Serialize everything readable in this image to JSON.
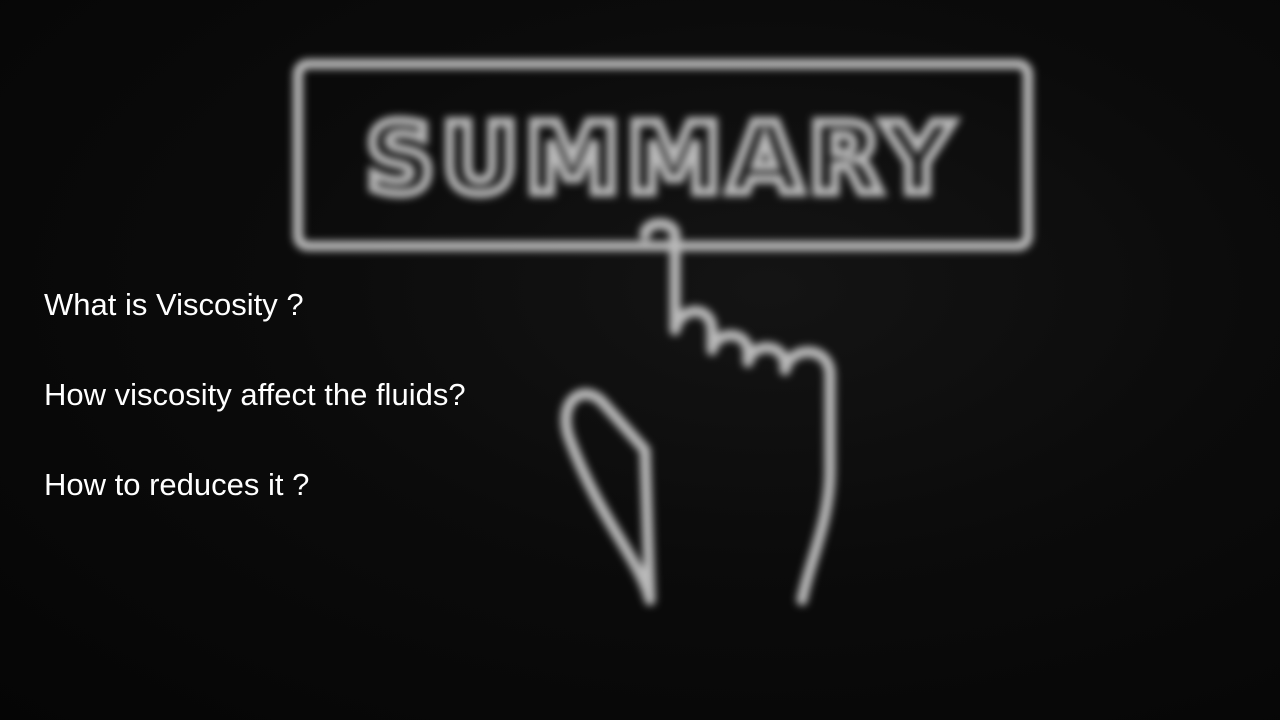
{
  "slide": {
    "background_art": {
      "sign_text": "SUMMARY",
      "hand_icon": "pointing-hand-icon",
      "stroke_color": "#b9b9b9",
      "background_color": "#0b0b0b"
    },
    "bullets": [
      "What is Viscosity ?",
      "How viscosity affect the fluids?",
      "How to reduces it ?"
    ],
    "text_color": "#ffffff"
  }
}
